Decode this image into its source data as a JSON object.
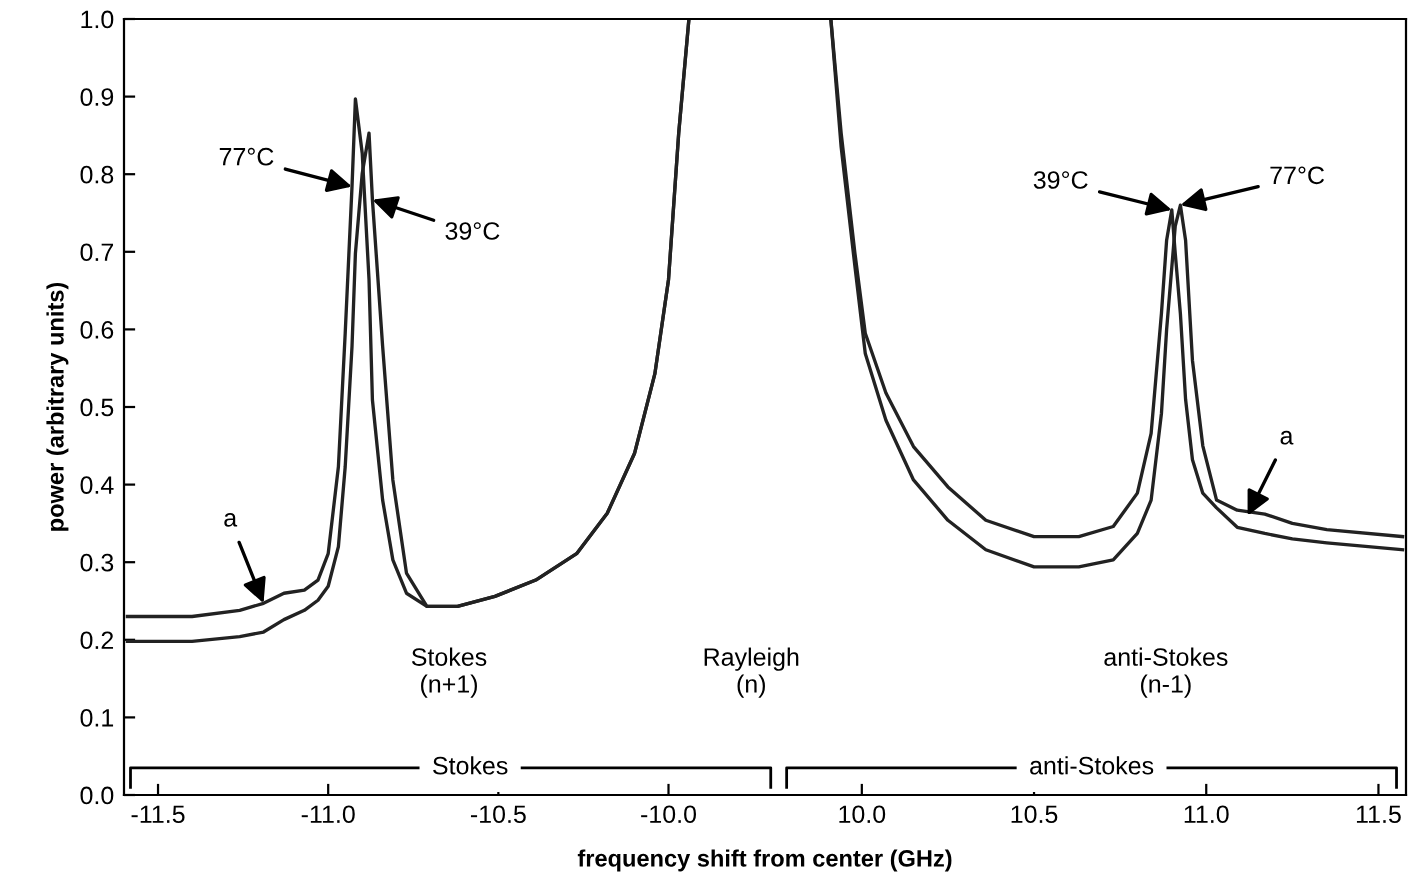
{
  "chart_data": [
    {
      "type": "line",
      "xlabel": "frequency shift from center (GHz)",
      "ylabel": "power (arbitrary units)",
      "x": [
        -11.59,
        -11.4,
        -11.26,
        -11.19,
        -11.13,
        -11.07,
        -11.03,
        -11.0,
        -10.97,
        -10.95,
        -10.93,
        -10.92,
        -10.9,
        -10.88,
        -10.87,
        -10.84,
        -10.81,
        -10.77,
        -10.71,
        -10.62,
        -10.51,
        -10.39,
        -10.27,
        -10.18,
        -10.1,
        -10.04,
        -10.0,
        -9.97,
        -9.94
      ],
      "series": [
        {
          "color": "#222222",
          "values": [
            0.23,
            0.23,
            0.238,
            0.247,
            0.26,
            0.264,
            0.277,
            0.311,
            0.423,
            0.595,
            0.784,
            0.897,
            0.827,
            0.664,
            0.509,
            0.38,
            0.303,
            0.26,
            0.243,
            0.243,
            0.256,
            0.277,
            0.311,
            0.363,
            0.44,
            0.543,
            0.664,
            0.853,
            1.0
          ]
        },
        {
          "color": "#222222",
          "values": [
            0.198,
            0.198,
            0.204,
            0.21,
            0.226,
            0.238,
            0.251,
            0.269,
            0.32,
            0.423,
            0.578,
            0.698,
            0.801,
            0.853,
            0.767,
            0.578,
            0.406,
            0.286,
            0.243,
            0.243,
            0.256,
            0.277,
            0.311,
            0.363,
            0.44,
            0.543,
            0.664,
            0.853,
            1.0
          ]
        }
      ],
      "xlim": [
        -11.6,
        -9.69
      ],
      "ylim": [
        0,
        1
      ],
      "xticks": [
        -11.5,
        {
          "value": -11.0,
          "label": "-11.0"
        },
        -10.5,
        {
          "value": -10.0,
          "label": "-10.0"
        }
      ],
      "yticks": [
        {
          "value": 0,
          "label": "0.0"
        },
        0.1,
        0.2,
        0.3,
        0.4,
        0.5,
        0.6,
        0.7,
        0.8,
        0.9,
        {
          "value": 1,
          "label": "1.0"
        }
      ],
      "annotations": [
        {
          "text": "77°C",
          "x": -10.93,
          "y": 0.784
        },
        {
          "text": "39°C",
          "x": -10.87,
          "y": 0.767
        },
        {
          "text": "a",
          "x": -11.19,
          "y": 0.247
        },
        "Stokes\n(n+1)",
        "Rayleigh\n(n)",
        "Stokes"
      ],
      "legend": false,
      "grid": false,
      "marker": "none",
      "line_style": "solid"
    },
    {
      "type": "line",
      "x": [
        9.91,
        9.94,
        9.98,
        10.01,
        10.07,
        10.15,
        10.25,
        10.36,
        10.5,
        10.63,
        10.73,
        10.8,
        10.84,
        10.87,
        10.885,
        10.9,
        10.91,
        10.925,
        10.94,
        10.96,
        10.99,
        11.03,
        11.09,
        11.17,
        11.25,
        11.35,
        11.57
      ],
      "series": [
        {
          "color": "#222222",
          "values": [
            1.0,
            0.853,
            0.698,
            0.595,
            0.518,
            0.449,
            0.397,
            0.354,
            0.333,
            0.333,
            0.346,
            0.389,
            0.466,
            0.621,
            0.715,
            0.754,
            0.698,
            0.62,
            0.51,
            0.432,
            0.389,
            0.37,
            0.345,
            0.337,
            0.33,
            0.325,
            0.316
          ]
        },
        {
          "color": "#222222",
          "values": [
            1.0,
            0.835,
            0.681,
            0.569,
            0.483,
            0.406,
            0.354,
            0.316,
            0.294,
            0.294,
            0.303,
            0.337,
            0.38,
            0.492,
            0.6,
            0.68,
            0.733,
            0.76,
            0.715,
            0.56,
            0.45,
            0.38,
            0.367,
            0.362,
            0.35,
            0.342,
            0.333
          ]
        }
      ],
      "xlim": [
        9.745,
        11.58
      ],
      "ylim": [
        0,
        1
      ],
      "xticks": [
        {
          "value": 10.0,
          "label": "10.0"
        },
        10.5,
        {
          "value": 11.0,
          "label": "11.0"
        },
        11.5
      ],
      "tick_labels": "x",
      "annotations": [
        {
          "text": "39°C",
          "x": 10.9,
          "y": 0.754
        },
        {
          "text": "77°C",
          "x": 10.925,
          "y": 0.76
        },
        {
          "text": "a",
          "x": 11.12,
          "y": 0.36
        },
        "anti-Stokes\n(n-1)",
        "anti-Stokes"
      ],
      "legend": false,
      "grid": false,
      "marker": "none",
      "line_style": "solid"
    }
  ]
}
